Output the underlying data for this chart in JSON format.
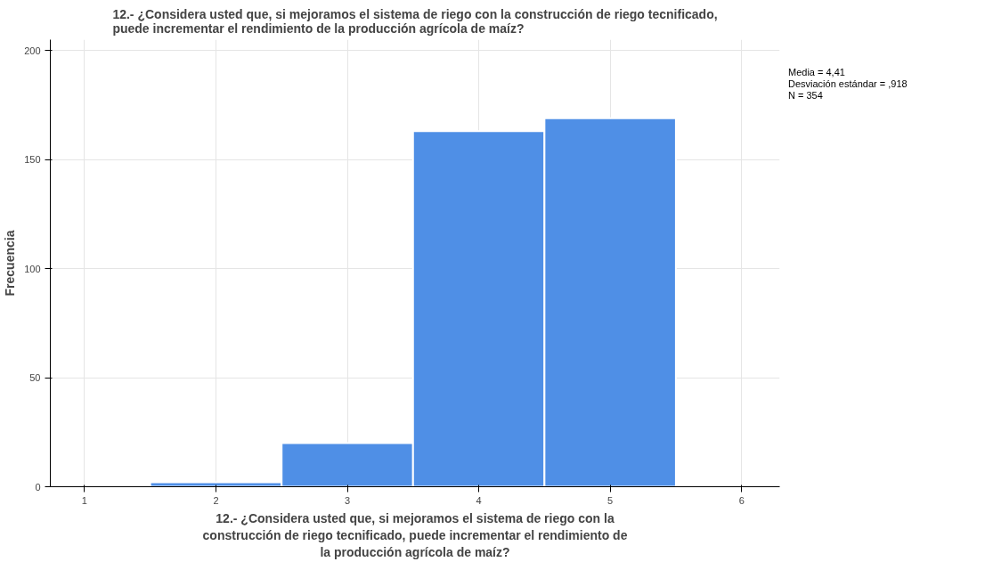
{
  "chart_data": {
    "type": "histogram",
    "title": "12.- ¿Considera usted que, si mejoramos el sistema de riego con la construcción de riego tecnificado, puede incrementar el rendimiento de la producción agrícola de maíz?",
    "xlabel": "12.- ¿Considera usted que, si mejoramos el sistema de riego con la construcción de riego tecnificado, puede incrementar el rendimiento de la producción agrícola de maíz?",
    "ylabel": "Frecuencia",
    "bins": [
      1.5,
      2.5,
      3.5,
      4.5,
      5.5
    ],
    "values": [
      2,
      20,
      163,
      169
    ],
    "color": "#4f8fe6",
    "xlim": [
      0.74,
      6.29
    ],
    "xticks": [
      1,
      2,
      3,
      4,
      5,
      6
    ],
    "ylim": [
      0,
      205
    ],
    "yticks": [
      0,
      50,
      100,
      150,
      200
    ],
    "grid": true,
    "annotations": [
      "Media = 4,41",
      "Desviación estándar = ,918",
      "N = 354"
    ]
  }
}
